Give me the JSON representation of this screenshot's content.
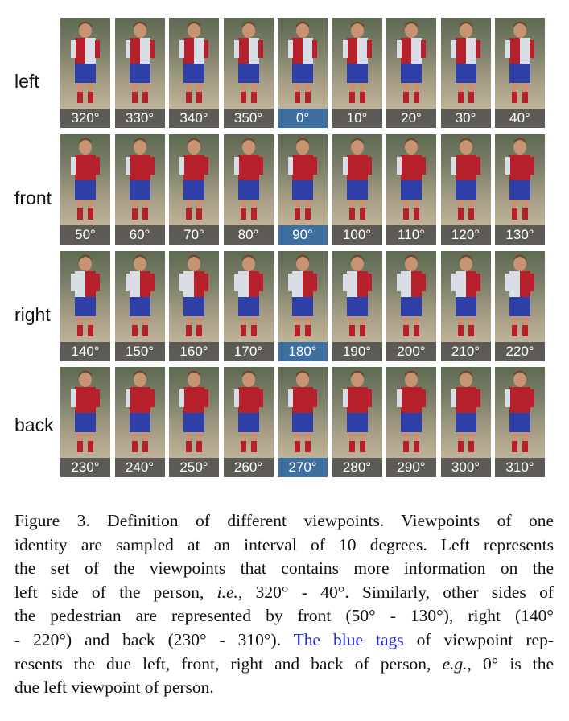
{
  "rows": [
    {
      "label": "left",
      "tags": [
        "320°",
        "330°",
        "340°",
        "350°",
        "0°",
        "10°",
        "20°",
        "30°",
        "40°"
      ]
    },
    {
      "label": "front",
      "tags": [
        "50°",
        "60°",
        "70°",
        "80°",
        "90°",
        "100°",
        "110°",
        "120°",
        "130°"
      ]
    },
    {
      "label": "right",
      "tags": [
        "140°",
        "150°",
        "160°",
        "170°",
        "180°",
        "190°",
        "200°",
        "210°",
        "220°"
      ]
    },
    {
      "label": "back",
      "tags": [
        "230°",
        "240°",
        "250°",
        "260°",
        "270°",
        "280°",
        "290°",
        "300°",
        "310°"
      ]
    }
  ],
  "blue_tag_index": 4,
  "colors": {
    "blue_tag": "#3e6f9e",
    "gray_tag": "#464646",
    "caption_link": "#1f24d6"
  },
  "caption": {
    "l1": "Figure 3. Definition of different viewpoints.  Viewpoints of one",
    "l2": "identity are sampled at an interval of 10 degrees.  Left represents",
    "l3": "the set of the viewpoints that contains more information on the",
    "l4a": "left side of the person, ",
    "l4ie": "i.e.",
    "l4b": ", 320° - 40°.  Similarly, other sides of",
    "l5": "the pedestrian are represented by front (50° - 130°), right (140°",
    "l6a": "- 220°) and back (230° - 310°).  ",
    "l6blue": "The blue tags",
    "l6b": " of viewpoint rep-",
    "l7a": "resents the due left, front, right and back of person, ",
    "l7eg": "e.g.",
    "l7b": ", 0° is the",
    "l8": "due left viewpoint of person."
  }
}
